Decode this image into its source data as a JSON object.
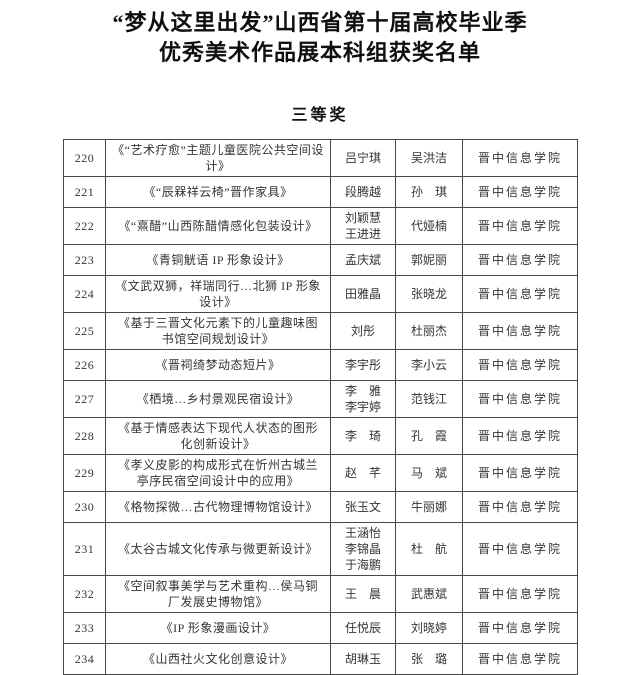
{
  "page": {
    "title_line1": "“梦从这里出发”山西省第十届高校毕业季",
    "title_line2": "优秀美术作品展本科组获奖名单",
    "section_label": "三等奖"
  },
  "colors": {
    "ink": "#343434",
    "table_border": "#474747",
    "background": "#ffffff"
  },
  "table": {
    "rows": [
      {
        "no": "220",
        "title": "《“艺术疗愈”主题儿童医院公共空间设计》",
        "authors": [
          "吕宁琪"
        ],
        "advisors": [
          "吴洪洁"
        ],
        "school": "晋中信息学院"
      },
      {
        "no": "221",
        "title": "《“辰槑祥云椅”晋作家具》",
        "authors": [
          "段腾越"
        ],
        "advisors": [
          "孙　琪"
        ],
        "school": "晋中信息学院"
      },
      {
        "no": "222",
        "title": "《“熹醋”山西陈醋情感化包装设计》",
        "authors": [
          "刘颖慧",
          "王进进"
        ],
        "advisors": [
          "代娅楠"
        ],
        "school": "晋中信息学院"
      },
      {
        "no": "223",
        "title": "《青铜觥语 IP 形象设计》",
        "authors": [
          "孟庆斌"
        ],
        "advisors": [
          "郭妮丽"
        ],
        "school": "晋中信息学院"
      },
      {
        "no": "224",
        "title": "《文武双狮，祥瑞同行…北狮 IP 形象设计》",
        "authors": [
          "田雅晶"
        ],
        "advisors": [
          "张晓龙"
        ],
        "school": "晋中信息学院"
      },
      {
        "no": "225",
        "title": "《基于三晋文化元素下的儿童趣味图书馆空间规划设计》",
        "authors": [
          "刘彤"
        ],
        "advisors": [
          "杜丽杰"
        ],
        "school": "晋中信息学院"
      },
      {
        "no": "226",
        "title": "《晋祠绮梦动态短片》",
        "authors": [
          "李宇彤"
        ],
        "advisors": [
          "李小云"
        ],
        "school": "晋中信息学院"
      },
      {
        "no": "227",
        "title": "《栖境…乡村景观民宿设计》",
        "authors": [
          "李　雅",
          "李宇婷"
        ],
        "advisors": [
          "范钱江"
        ],
        "school": "晋中信息学院"
      },
      {
        "no": "228",
        "title": "《基于情感表达下现代人状态的图形化创新设计》",
        "authors": [
          "李　琦"
        ],
        "advisors": [
          "孔　霞"
        ],
        "school": "晋中信息学院"
      },
      {
        "no": "229",
        "title": "《孝义皮影的构成形式在忻州古城兰亭序民宿空间设计中的应用》",
        "authors": [
          "赵　芊"
        ],
        "advisors": [
          "马　斌"
        ],
        "school": "晋中信息学院"
      },
      {
        "no": "230",
        "title": "《格物探微…古代物理博物馆设计》",
        "authors": [
          "张玉文"
        ],
        "advisors": [
          "牛丽娜"
        ],
        "school": "晋中信息学院"
      },
      {
        "no": "231",
        "title": "《太谷古城文化传承与微更新设计》",
        "authors": [
          "王涵怡",
          "李锦晶",
          "于海鹏"
        ],
        "advisors": [
          "杜　航"
        ],
        "school": "晋中信息学院"
      },
      {
        "no": "232",
        "title": "《空间叙事美学与艺术重构…侯马铜厂发展史博物馆》",
        "authors": [
          "王　晨"
        ],
        "advisors": [
          "武惠斌"
        ],
        "school": "晋中信息学院"
      },
      {
        "no": "233",
        "title": "《IP 形象漫画设计》",
        "authors": [
          "任悦辰"
        ],
        "advisors": [
          "刘晓婷"
        ],
        "school": "晋中信息学院"
      },
      {
        "no": "234",
        "title": "《山西社火文化创意设计》",
        "authors": [
          "胡琳玉"
        ],
        "advisors": [
          "张　璐"
        ],
        "school": "晋中信息学院"
      }
    ]
  }
}
